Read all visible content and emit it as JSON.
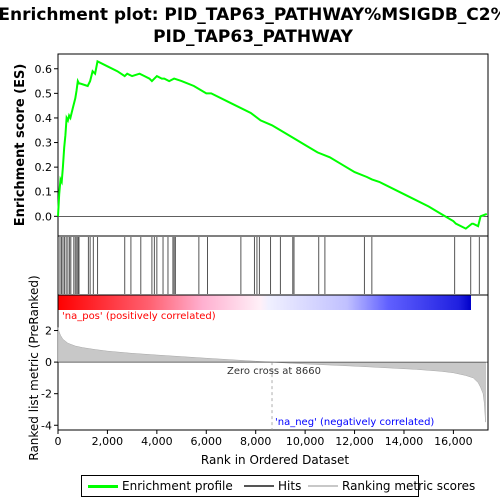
{
  "title_line1": "Enrichment plot: PID_TAP63_PATHWAY%MSIGDB_C2%",
  "title_line2": "PID_TAP63_PATHWAY",
  "legend": {
    "items": [
      {
        "label": "Enrichment profile",
        "color": "#00ff00"
      },
      {
        "label": "Hits",
        "color": "#555555"
      },
      {
        "label": "Ranking metric scores",
        "color": "#c8c8c8"
      }
    ]
  },
  "annotations": {
    "pos_label": "'na_pos' (positively correlated)",
    "neg_label": "'na_neg' (negatively correlated)",
    "zero_cross": "Zero cross at 8660",
    "pos_color": "#ff0000",
    "neg_color": "#0000ff"
  },
  "chart_data": [
    {
      "type": "line",
      "name": "enrichment-profile",
      "ylabel": "Enrichment score (ES)",
      "ylim": [
        -0.08,
        0.66
      ],
      "xlim": [
        0,
        17400
      ],
      "yticks": [
        0.0,
        0.1,
        0.2,
        0.3,
        0.4,
        0.5,
        0.6
      ],
      "ytick_labels": [
        "0.0",
        "0.1",
        "0.2",
        "0.3",
        "0.4",
        "0.5",
        "0.6"
      ],
      "color": "#00ff00",
      "x": [
        0,
        50,
        100,
        150,
        200,
        250,
        300,
        350,
        400,
        450,
        500,
        600,
        700,
        750,
        800,
        850,
        900,
        1200,
        1300,
        1400,
        1500,
        1600,
        2000,
        2400,
        2700,
        2800,
        3000,
        3300,
        3500,
        3700,
        3800,
        3900,
        4000,
        4200,
        4300,
        4500,
        4700,
        5000,
        5500,
        6000,
        6200,
        7000,
        7800,
        8200,
        8660,
        9000,
        9500,
        10000,
        10500,
        11000,
        11500,
        12000,
        12500,
        12700,
        13000,
        14000,
        15000,
        15500,
        16000,
        16100,
        16500,
        16750,
        16800,
        17000,
        17100,
        17350
      ],
      "y": [
        0.0,
        0.09,
        0.15,
        0.14,
        0.2,
        0.28,
        0.33,
        0.4,
        0.39,
        0.41,
        0.4,
        0.44,
        0.48,
        0.51,
        0.55,
        0.54,
        0.54,
        0.53,
        0.55,
        0.59,
        0.58,
        0.63,
        0.61,
        0.59,
        0.57,
        0.58,
        0.57,
        0.58,
        0.57,
        0.56,
        0.55,
        0.56,
        0.57,
        0.56,
        0.56,
        0.55,
        0.56,
        0.55,
        0.53,
        0.5,
        0.5,
        0.46,
        0.42,
        0.39,
        0.37,
        0.35,
        0.32,
        0.29,
        0.26,
        0.24,
        0.21,
        0.18,
        0.16,
        0.15,
        0.14,
        0.09,
        0.04,
        0.01,
        -0.02,
        -0.03,
        -0.05,
        -0.03,
        -0.03,
        -0.04,
        0.0,
        0.01
      ]
    },
    {
      "type": "barcode",
      "name": "hits",
      "color": "#555555",
      "hit_positions": [
        80,
        140,
        200,
        260,
        330,
        400,
        470,
        520,
        640,
        700,
        760,
        810,
        850,
        1230,
        1300,
        1430,
        1600,
        2700,
        2950,
        3350,
        3800,
        3900,
        4000,
        4250,
        4450,
        4650,
        4700,
        4750,
        5700,
        6050,
        7400,
        7950,
        8050,
        8150,
        8600,
        9000,
        9500,
        9550,
        10550,
        10800,
        12400,
        12700,
        16050,
        16700,
        17050
      ]
    },
    {
      "type": "area",
      "name": "ranking-metric",
      "ylabel": "Ranked list metric (PreRanked)",
      "xlabel": "Rank in Ordered Dataset",
      "xlim": [
        0,
        17400
      ],
      "ylim": [
        -4.3,
        3.3
      ],
      "xticks": [
        0,
        2000,
        4000,
        6000,
        8000,
        10000,
        12000,
        14000,
        16000
      ],
      "xtick_labels": [
        "0",
        "2,000",
        "4,000",
        "6,000",
        "8,000",
        "10,000",
        "12,000",
        "14,000",
        "16,000"
      ],
      "yticks": [
        -4,
        -2,
        0,
        2
      ],
      "ytick_labels": [
        "-4",
        "-2",
        "0",
        "2"
      ],
      "color": "#c8c8c8",
      "zero_cross": 8660,
      "x": [
        0,
        30,
        100,
        200,
        400,
        700,
        1000,
        1500,
        2000,
        3000,
        4000,
        5000,
        6000,
        7000,
        8000,
        8660,
        9500,
        10500,
        11500,
        12500,
        13500,
        14500,
        15500,
        16000,
        16500,
        16800,
        17000,
        17100,
        17200,
        17250,
        17300
      ],
      "y": [
        2.2,
        2.0,
        1.7,
        1.45,
        1.2,
        1.02,
        0.92,
        0.8,
        0.7,
        0.56,
        0.45,
        0.35,
        0.25,
        0.15,
        0.06,
        0.0,
        -0.08,
        -0.15,
        -0.22,
        -0.3,
        -0.38,
        -0.46,
        -0.58,
        -0.68,
        -0.85,
        -1.0,
        -1.3,
        -1.6,
        -2.0,
        -2.6,
        -3.8
      ]
    }
  ]
}
